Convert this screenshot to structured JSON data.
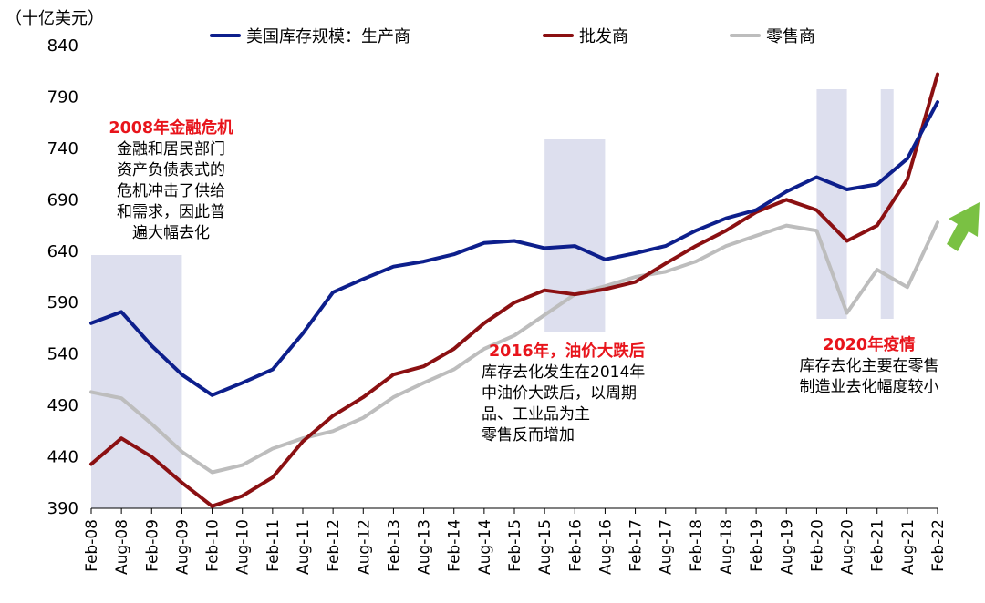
{
  "chart_data": {
    "type": "line",
    "ylabel": "（十亿美元）",
    "ylim": [
      390,
      840
    ],
    "yticks": [
      390,
      440,
      490,
      540,
      590,
      640,
      690,
      740,
      790,
      840
    ],
    "x_start": "Feb-08",
    "x_end": "Feb-22",
    "xticks": [
      "Feb-08",
      "Aug-08",
      "Feb-09",
      "Aug-09",
      "Feb-10",
      "Aug-10",
      "Feb-11",
      "Aug-11",
      "Feb-12",
      "Aug-12",
      "Feb-13",
      "Aug-13",
      "Feb-14",
      "Aug-14",
      "Feb-15",
      "Aug-15",
      "Feb-16",
      "Aug-16",
      "Feb-17",
      "Aug-17",
      "Feb-18",
      "Aug-18",
      "Feb-19",
      "Aug-19",
      "Feb-20",
      "Aug-20",
      "Feb-21",
      "Aug-21",
      "Feb-22"
    ],
    "legend_position": "top",
    "series": [
      {
        "name": "美国库存规模：生产商",
        "color": "#0d1f8c",
        "points": [
          [
            "Feb-08",
            570
          ],
          [
            "Aug-08",
            581
          ],
          [
            "Feb-09",
            548
          ],
          [
            "Aug-09",
            520
          ],
          [
            "Feb-10",
            500
          ],
          [
            "Aug-10",
            512
          ],
          [
            "Feb-11",
            525
          ],
          [
            "Aug-11",
            560
          ],
          [
            "Feb-12",
            600
          ],
          [
            "Aug-12",
            613
          ],
          [
            "Feb-13",
            625
          ],
          [
            "Aug-13",
            630
          ],
          [
            "Feb-14",
            637
          ],
          [
            "Aug-14",
            648
          ],
          [
            "Feb-15",
            650
          ],
          [
            "Aug-15",
            643
          ],
          [
            "Feb-16",
            645
          ],
          [
            "Aug-16",
            632
          ],
          [
            "Feb-17",
            638
          ],
          [
            "Aug-17",
            645
          ],
          [
            "Feb-18",
            660
          ],
          [
            "Aug-18",
            672
          ],
          [
            "Feb-19",
            680
          ],
          [
            "Aug-19",
            698
          ],
          [
            "Feb-20",
            712
          ],
          [
            "Aug-20",
            700
          ],
          [
            "Feb-21",
            705
          ],
          [
            "Aug-21",
            730
          ],
          [
            "Feb-22",
            785
          ]
        ]
      },
      {
        "name": "批发商",
        "color": "#8b1012",
        "points": [
          [
            "Feb-08",
            433
          ],
          [
            "Aug-08",
            458
          ],
          [
            "Feb-09",
            440
          ],
          [
            "Aug-09",
            415
          ],
          [
            "Feb-10",
            392
          ],
          [
            "Aug-10",
            402
          ],
          [
            "Feb-11",
            420
          ],
          [
            "Aug-11",
            455
          ],
          [
            "Feb-12",
            480
          ],
          [
            "Aug-12",
            498
          ],
          [
            "Feb-13",
            520
          ],
          [
            "Aug-13",
            528
          ],
          [
            "Feb-14",
            545
          ],
          [
            "Aug-14",
            570
          ],
          [
            "Feb-15",
            590
          ],
          [
            "Aug-15",
            602
          ],
          [
            "Feb-16",
            598
          ],
          [
            "Aug-16",
            603
          ],
          [
            "Feb-17",
            610
          ],
          [
            "Aug-17",
            628
          ],
          [
            "Feb-18",
            645
          ],
          [
            "Aug-18",
            660
          ],
          [
            "Feb-19",
            678
          ],
          [
            "Aug-19",
            690
          ],
          [
            "Feb-20",
            680
          ],
          [
            "Aug-20",
            650
          ],
          [
            "Feb-21",
            665
          ],
          [
            "Aug-21",
            710
          ],
          [
            "Feb-22",
            812
          ]
        ]
      },
      {
        "name": "零售商",
        "color": "#bdbdbd",
        "points": [
          [
            "Feb-08",
            503
          ],
          [
            "Aug-08",
            497
          ],
          [
            "Feb-09",
            472
          ],
          [
            "Aug-09",
            445
          ],
          [
            "Feb-10",
            425
          ],
          [
            "Aug-10",
            432
          ],
          [
            "Feb-11",
            448
          ],
          [
            "Aug-11",
            458
          ],
          [
            "Feb-12",
            465
          ],
          [
            "Aug-12",
            478
          ],
          [
            "Feb-13",
            498
          ],
          [
            "Aug-13",
            512
          ],
          [
            "Feb-14",
            525
          ],
          [
            "Aug-14",
            545
          ],
          [
            "Feb-15",
            558
          ],
          [
            "Aug-15",
            578
          ],
          [
            "Feb-16",
            598
          ],
          [
            "Aug-16",
            606
          ],
          [
            "Feb-17",
            615
          ],
          [
            "Aug-17",
            620
          ],
          [
            "Feb-18",
            630
          ],
          [
            "Aug-18",
            645
          ],
          [
            "Feb-19",
            655
          ],
          [
            "Aug-19",
            665
          ],
          [
            "Feb-20",
            660
          ],
          [
            "Aug-20",
            580
          ],
          [
            "Feb-21",
            622
          ],
          [
            "Aug-21",
            605
          ],
          [
            "Feb-22",
            668
          ]
        ]
      }
    ],
    "shaded_periods": [
      {
        "from": "Feb-08",
        "to": "Aug-09",
        "label": "2008-crisis"
      },
      {
        "from": "Aug-15",
        "to": "Aug-16",
        "label": "2016-oil"
      },
      {
        "from": "Feb-20",
        "to": "Aug-20",
        "label": "2020-a"
      },
      {
        "from": "Feb-21",
        "to": "Feb-21",
        "label": "2020-b"
      }
    ],
    "annotations": [
      {
        "title": "2008年金融危机",
        "lines": [
          "金融和居民部门",
          "资产负债表式的",
          "危机冲击了供给",
          "和需求，因此普",
          "遍大幅去化"
        ]
      },
      {
        "title": "2016年，油价大跌后",
        "lines": [
          "库存去化发生在2014年",
          "中油价大跌后，以周期",
          "品、工业品为主",
          "零售反而增加"
        ]
      },
      {
        "title": "2020年疫情",
        "lines": [
          "库存去化主要在零售",
          "制造业去化幅度较小"
        ]
      }
    ],
    "arrow_color": "#7ac143"
  }
}
